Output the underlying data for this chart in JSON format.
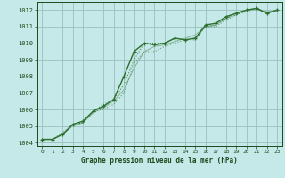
{
  "title": "Graphe pression niveau de la mer (hPa)",
  "bg_color": "#c5e8e8",
  "grid_color": "#9bbfbf",
  "line_color": "#2d6e2d",
  "text_color": "#1a4a1a",
  "xlim": [
    -0.5,
    23.5
  ],
  "ylim": [
    1003.8,
    1012.5
  ],
  "yticks": [
    1004,
    1005,
    1006,
    1007,
    1008,
    1009,
    1010,
    1011,
    1012
  ],
  "xticks": [
    0,
    1,
    2,
    3,
    4,
    5,
    6,
    7,
    8,
    9,
    10,
    11,
    12,
    13,
    14,
    15,
    16,
    17,
    18,
    19,
    20,
    21,
    22,
    23
  ],
  "series_main": [
    1004.2,
    1004.2,
    1004.5,
    1005.1,
    1005.3,
    1005.9,
    1006.2,
    1006.6,
    1008.0,
    1009.5,
    1010.0,
    1009.9,
    1010.0,
    1010.3,
    1010.2,
    1010.3,
    1011.1,
    1011.2,
    1011.6,
    1011.8,
    1012.0,
    1012.1,
    1011.8,
    1012.0
  ],
  "series_dotted1": [
    1004.2,
    1004.2,
    1004.6,
    1005.1,
    1005.2,
    1005.9,
    1006.3,
    1006.6,
    1007.5,
    1009.0,
    1010.0,
    1010.0,
    1010.0,
    1010.3,
    1010.2,
    1010.2,
    1011.0,
    1011.1,
    1011.5,
    1011.7,
    1012.0,
    1012.1,
    1011.8,
    1012.0
  ],
  "series_dotted2": [
    1004.2,
    1004.2,
    1004.5,
    1005.1,
    1005.2,
    1005.9,
    1006.0,
    1006.3,
    1007.0,
    1008.8,
    1009.5,
    1009.5,
    1009.8,
    1010.0,
    1010.2,
    1010.3,
    1011.0,
    1011.0,
    1011.4,
    1011.7,
    1011.9,
    1012.1,
    1011.8,
    1012.0
  ],
  "series_smooth": [
    1004.2,
    1004.2,
    1004.5,
    1005.0,
    1005.2,
    1005.8,
    1006.1,
    1006.5,
    1007.2,
    1008.5,
    1009.5,
    1009.8,
    1009.9,
    1010.1,
    1010.3,
    1010.5,
    1011.0,
    1011.1,
    1011.5,
    1011.8,
    1012.0,
    1012.1,
    1011.9,
    1012.0
  ]
}
